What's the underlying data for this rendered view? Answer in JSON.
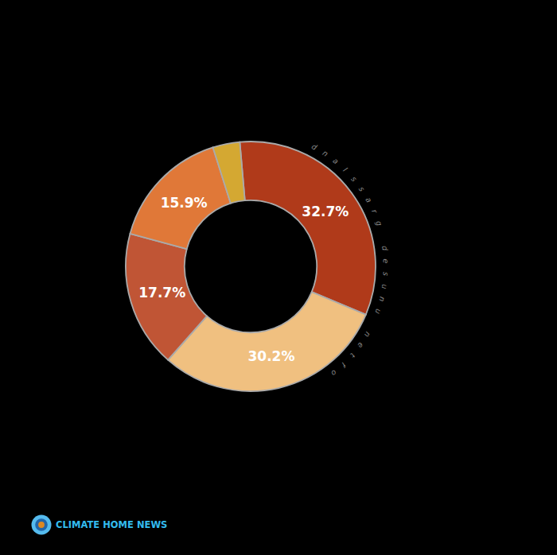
{
  "chart_data": {
    "type": "pie",
    "values": [
      32.7,
      30.2,
      17.7,
      15.9,
      3.5
    ],
    "value_labels": [
      "32.7%",
      "30.2%",
      "17.7%",
      "15.9%",
      null
    ],
    "colors": [
      "#b03a1a",
      "#f0c080",
      "#c05535",
      "#e07838",
      "#d4a832"
    ],
    "data_labels": true,
    "annotations": [
      "often unused grassland",
      "CLIMATE HOME NEWS"
    ]
  }
}
